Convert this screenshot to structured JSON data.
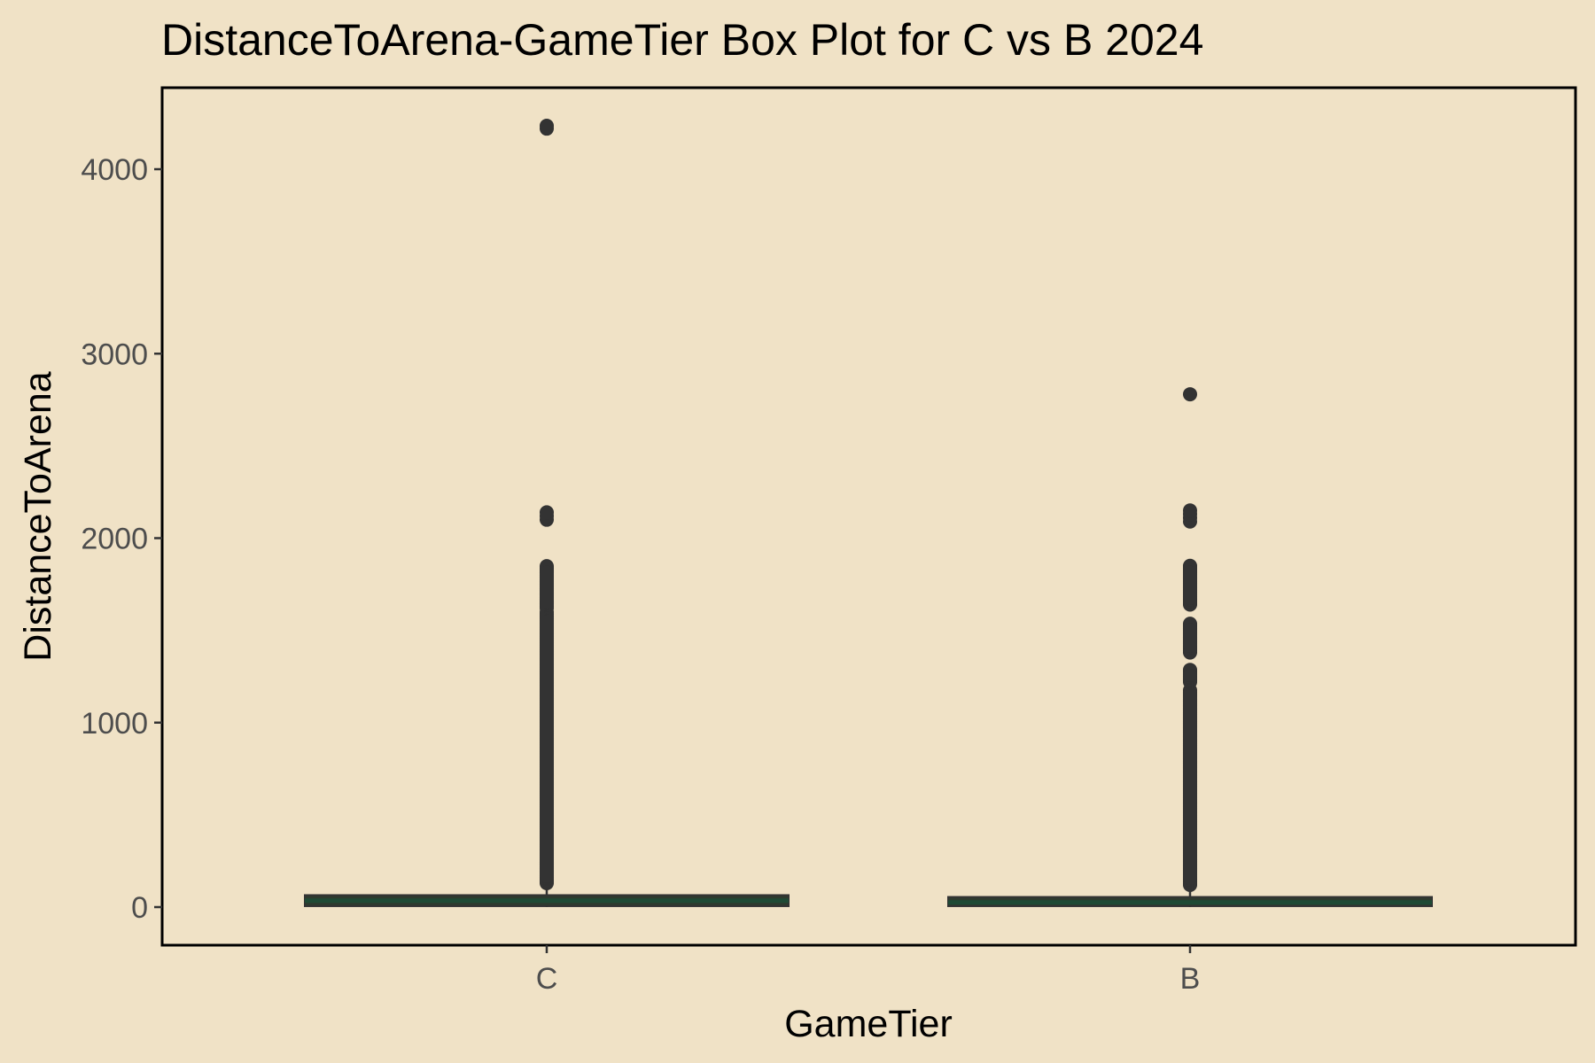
{
  "chart_data": {
    "type": "box",
    "title": "DistanceToArena-GameTier Box Plot for C vs B 2024",
    "xlabel": "GameTier",
    "ylabel": "DistanceToArena",
    "ylim": [
      -200,
      4400
    ],
    "yticks": [
      0,
      1000,
      2000,
      3000,
      4000
    ],
    "categories": [
      "C",
      "B"
    ],
    "grid": false,
    "legend": "none",
    "colors": {
      "background": "#f0e2c6",
      "box_fill": "#2e3a2e",
      "median": "#1f4a35",
      "outlier": "#333333",
      "panel_border": "#000000",
      "tick_text": "#4d4d4d"
    },
    "boxes": [
      {
        "category": "C",
        "q1": 5,
        "median": 35,
        "q3": 65,
        "whisker_low": 0,
        "whisker_high": 110,
        "outliers": {
          "dense_ranges": [
            [
              130,
              1600
            ],
            [
              1620,
              1850
            ]
          ],
          "points": [
            2100,
            2120,
            2140,
            4220,
            4235
          ]
        }
      },
      {
        "category": "B",
        "q1": 5,
        "median": 25,
        "q3": 55,
        "whisker_low": 0,
        "whisker_high": 100,
        "outliers": {
          "dense_ranges": [
            [
              120,
              1180
            ],
            [
              1220,
              1290
            ],
            [
              1380,
              1540
            ],
            [
              1640,
              1850
            ]
          ],
          "points": [
            2090,
            2110,
            2130,
            2150,
            2780
          ]
        }
      }
    ]
  }
}
